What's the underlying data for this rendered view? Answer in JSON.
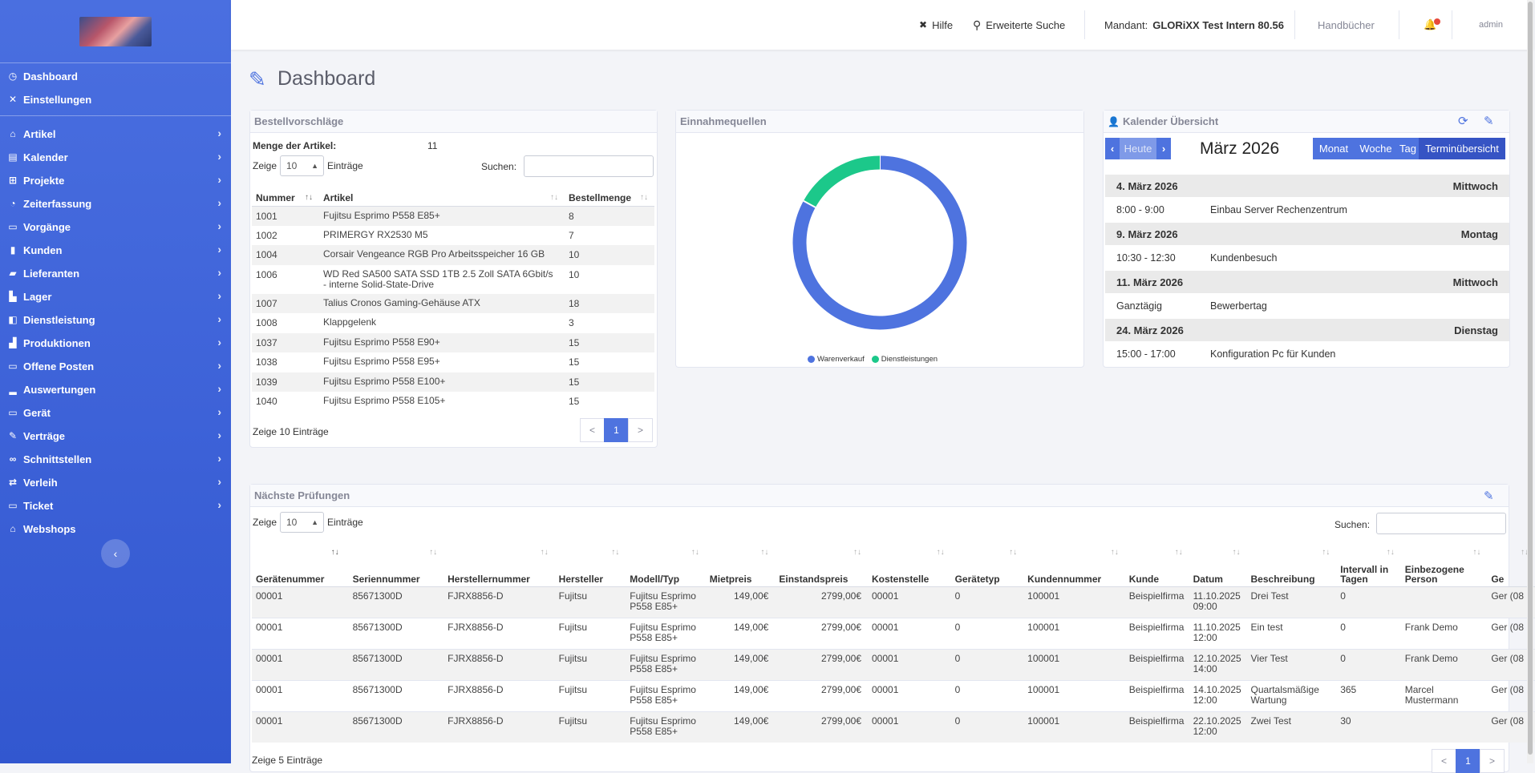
{
  "sidebar": {
    "items": [
      {
        "label": "Dashboard",
        "icon": "tachometer-icon",
        "glyph": "◷",
        "chev": false
      },
      {
        "label": "Einstellungen",
        "icon": "wrench-icon",
        "glyph": "✕",
        "chev": false
      },
      {
        "label": "Artikel",
        "icon": "shop-icon",
        "glyph": "⌂",
        "chev": true
      },
      {
        "label": "Kalender",
        "icon": "calendar-icon",
        "glyph": "▤",
        "chev": true
      },
      {
        "label": "Projekte",
        "icon": "sitemap-icon",
        "glyph": "⊞",
        "chev": true
      },
      {
        "label": "Zeiterfassung",
        "icon": "clock-icon",
        "glyph": "◔",
        "chev": true
      },
      {
        "label": "Vorgänge",
        "icon": "scroll-icon",
        "glyph": "▭",
        "chev": true
      },
      {
        "label": "Kunden",
        "icon": "book-icon",
        "glyph": "▮",
        "chev": true
      },
      {
        "label": "Lieferanten",
        "icon": "truck-icon",
        "glyph": "▰",
        "chev": true
      },
      {
        "label": "Lager",
        "icon": "warehouse-icon",
        "glyph": "▙",
        "chev": true
      },
      {
        "label": "Dienstleistung",
        "icon": "handshake-icon",
        "glyph": "◧",
        "chev": true
      },
      {
        "label": "Produktionen",
        "icon": "industry-icon",
        "glyph": "▟",
        "chev": true
      },
      {
        "label": "Offene Posten",
        "icon": "receipt-icon",
        "glyph": "▭",
        "chev": true
      },
      {
        "label": "Auswertungen",
        "icon": "chart-icon",
        "glyph": "▂",
        "chev": true
      },
      {
        "label": "Gerät",
        "icon": "laptop-icon",
        "glyph": "▭",
        "chev": true
      },
      {
        "label": "Verträge",
        "icon": "file-contract-icon",
        "glyph": "✎",
        "chev": true
      },
      {
        "label": "Schnittstellen",
        "icon": "link-icon",
        "glyph": "∞",
        "chev": true
      },
      {
        "label": "Verleih",
        "icon": "exchange-icon",
        "glyph": "⇄",
        "chev": true
      },
      {
        "label": "Ticket",
        "icon": "ticket-icon",
        "glyph": "▭",
        "chev": true
      },
      {
        "label": "Webshops",
        "icon": "store-icon",
        "glyph": "⌂",
        "chev": false
      }
    ],
    "collapse_glyph": "‹"
  },
  "topbar": {
    "help": "Hilfe",
    "help_glyph": "✖",
    "advanced_search": "Erweiterte Suche",
    "search_glyph": "⚲",
    "mandant_label": "Mandant:",
    "mandant_value": "GLORiXX Test Intern 80.56",
    "manuals": "Handbücher",
    "bell_glyph": "🔔",
    "user": "admin"
  },
  "page": {
    "title": "Dashboard",
    "title_glyph": "✎"
  },
  "bestell": {
    "title": "Bestellvorschläge",
    "menge_label": "Menge der Artikel:",
    "menge_value": "11",
    "zeige": "Zeige",
    "entries_value": "10",
    "eintraege": "Einträge",
    "suchen": "Suchen:",
    "columns": [
      "Nummer",
      "Artikel",
      "Bestellmenge"
    ],
    "rows": [
      {
        "nr": "1001",
        "art": "Fujitsu Esprimo P558 E85+",
        "menge": "8"
      },
      {
        "nr": "1002",
        "art": "PRIMERGY RX2530 M5",
        "menge": "7"
      },
      {
        "nr": "1004",
        "art": "Corsair Vengeance RGB Pro Arbeitsspeicher 16 GB",
        "menge": "10"
      },
      {
        "nr": "1006",
        "art": "WD Red SA500 SATA SSD 1TB 2.5 Zoll SATA 6Gbit/s - interne Solid-State-Drive",
        "menge": "10"
      },
      {
        "nr": "1007",
        "art": "Talius Cronos Gaming-Gehäuse ATX",
        "menge": "18"
      },
      {
        "nr": "1008",
        "art": "Klappgelenk",
        "menge": "3"
      },
      {
        "nr": "1037",
        "art": "Fujitsu Esprimo P558 E90+",
        "menge": "15"
      },
      {
        "nr": "1038",
        "art": "Fujitsu Esprimo P558 E95+",
        "menge": "15"
      },
      {
        "nr": "1039",
        "art": "Fujitsu Esprimo P558 E100+",
        "menge": "15"
      },
      {
        "nr": "1040",
        "art": "Fujitsu Esprimo P558 E105+",
        "menge": "15"
      }
    ],
    "footer": "Zeige 10 Einträge",
    "pager": [
      "<",
      "1",
      ">"
    ]
  },
  "einnahme": {
    "title": "Einnahmequellen",
    "chart_data": {
      "type": "pie",
      "variant": "doughnut",
      "series": [
        {
          "name": "Warenverkauf",
          "value": 83,
          "color": "#4e73df"
        },
        {
          "name": "Dienstleistungen",
          "value": 17,
          "color": "#1cc88a"
        }
      ],
      "legend": "bottom"
    }
  },
  "kalender": {
    "title": "Kalender Übersicht",
    "heute": "Heute",
    "month": "März 2026",
    "views": [
      "Monat",
      "Woche",
      "Tag",
      "Terminübersicht"
    ],
    "days": [
      {
        "date": "4. März 2026",
        "weekday": "Mittwoch",
        "time": "8:00 - 9:00",
        "event": "Einbau Server Rechenzentrum"
      },
      {
        "date": "9. März 2026",
        "weekday": "Montag",
        "time": "10:30 - 12:30",
        "event": "Kundenbesuch"
      },
      {
        "date": "11. März 2026",
        "weekday": "Mittwoch",
        "time": "Ganztägig",
        "event": "Bewerbertag"
      },
      {
        "date": "24. März 2026",
        "weekday": "Dienstag",
        "time": "15:00 - 17:00",
        "event": "Konfiguration Pc für Kunden"
      }
    ]
  },
  "pruefungen": {
    "title": "Nächste Prüfungen",
    "zeige": "Zeige",
    "entries_value": "10",
    "eintraege": "Einträge",
    "suchen": "Suchen:",
    "columns": [
      "Gerätenummer",
      "Seriennummer",
      "Herstellernummer",
      "Hersteller",
      "Modell/Typ",
      "Mietpreis",
      "Einstandspreis",
      "Kostenstelle",
      "Gerätetyp",
      "Kundennummer",
      "Kunde",
      "Datum",
      "Beschreibung",
      "Intervall in Tagen",
      "Einbezogene Person",
      "Ge"
    ],
    "rows": [
      [
        "00001",
        "85671300D",
        "FJRX8856-D",
        "Fujitsu",
        "Fujitsu Esprimo P558 E85+",
        "149,00€",
        "2799,00€",
        "00001",
        "0",
        "100001",
        "Beispielfirma",
        "11.10.2025 09:00",
        "Drei Test",
        "0",
        "",
        "Ger (08"
      ],
      [
        "00001",
        "85671300D",
        "FJRX8856-D",
        "Fujitsu",
        "Fujitsu Esprimo P558 E85+",
        "149,00€",
        "2799,00€",
        "00001",
        "0",
        "100001",
        "Beispielfirma",
        "11.10.2025 12:00",
        "Ein test",
        "0",
        "Frank Demo",
        "Ger (08"
      ],
      [
        "00001",
        "85671300D",
        "FJRX8856-D",
        "Fujitsu",
        "Fujitsu Esprimo P558 E85+",
        "149,00€",
        "2799,00€",
        "00001",
        "0",
        "100001",
        "Beispielfirma",
        "12.10.2025 14:00",
        "Vier Test",
        "0",
        "Frank Demo",
        "Ger (08"
      ],
      [
        "00001",
        "85671300D",
        "FJRX8856-D",
        "Fujitsu",
        "Fujitsu Esprimo P558 E85+",
        "149,00€",
        "2799,00€",
        "00001",
        "0",
        "100001",
        "Beispielfirma",
        "14.10.2025 12:00",
        "Quartalsmäßige Wartung",
        "365",
        "Marcel Mustermann",
        "Ger (08"
      ],
      [
        "00001",
        "85671300D",
        "FJRX8856-D",
        "Fujitsu",
        "Fujitsu Esprimo P558 E85+",
        "149,00€",
        "2799,00€",
        "00001",
        "0",
        "100001",
        "Beispielfirma",
        "22.10.2025 12:00",
        "Zwei Test",
        "30",
        "",
        "Ger (08"
      ]
    ],
    "footer": "Zeige 5 Einträge",
    "pager": [
      "<",
      "1",
      ">"
    ]
  }
}
